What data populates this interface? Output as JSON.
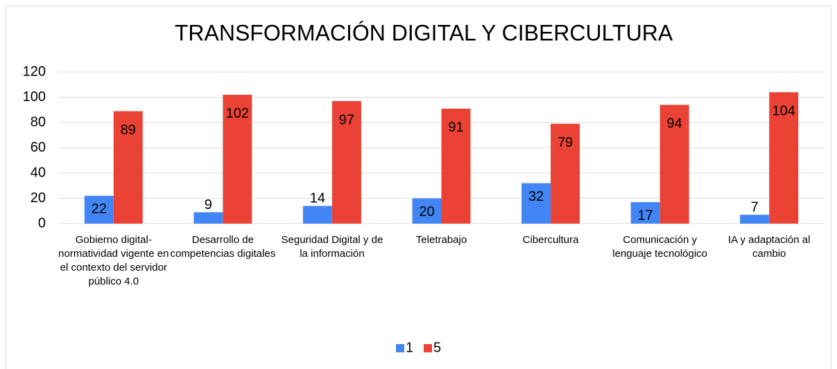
{
  "chart_data": {
    "type": "bar",
    "title": "TRANSFORMACIÓN DIGITAL Y CIBERCULTURA",
    "categories": [
      "Gobierno digital-normatividad vigente en el contexto del servidor público 4.0",
      "Desarrollo de competencias digitales",
      "Seguridad Digital y de la información",
      "Teletrabajo",
      "Cibercultura",
      "Comunicación y lenguaje tecnológico",
      "IA y adaptación al cambio"
    ],
    "series": [
      {
        "name": "1",
        "color": "#4285f4",
        "values": [
          22,
          9,
          14,
          20,
          32,
          17,
          7
        ]
      },
      {
        "name": "5",
        "color": "#ea4335",
        "values": [
          89,
          102,
          97,
          91,
          79,
          94,
          104
        ]
      }
    ],
    "ylim": [
      0,
      120
    ],
    "yticks": [
      0,
      20,
      40,
      60,
      80,
      100,
      120
    ],
    "grid": true,
    "legend": "bottom"
  }
}
